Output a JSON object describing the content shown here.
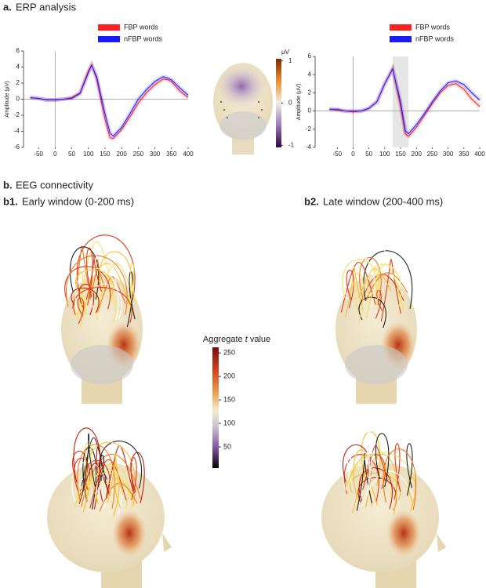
{
  "sections": {
    "a_label": "a.",
    "a_title": "ERP analysis",
    "b_label": "b.",
    "b_title": "EEG connectivity",
    "b1_label": "b1.",
    "b1_title": "Early window (0-200 ms)",
    "b2_label": "b2.",
    "b2_title": "Late window (200-400 ms)"
  },
  "chart_data": [
    {
      "type": "line",
      "ylabel": "Amplitude (μV)",
      "legend": "top",
      "x": [
        -75,
        -50,
        -25,
        0,
        25,
        50,
        75,
        100,
        110,
        125,
        150,
        165,
        175,
        200,
        225,
        250,
        275,
        300,
        325,
        340,
        350,
        375,
        400
      ],
      "series": [
        {
          "name": "FBP words",
          "color": "#ff2020",
          "values": [
            0.2,
            0.1,
            -0.1,
            -0.1,
            0,
            0.2,
            0.8,
            3.5,
            4.3,
            2.5,
            -2.5,
            -4.8,
            -4.9,
            -3.8,
            -2.2,
            -0.5,
            0.8,
            1.8,
            2.5,
            2.4,
            2.2,
            1.0,
            0.2
          ]
        },
        {
          "name": "nFBP words",
          "color": "#1a1aff",
          "values": [
            0.2,
            0.1,
            -0.1,
            -0.1,
            0,
            0.1,
            0.7,
            3.3,
            4.2,
            2.8,
            -1.8,
            -4.2,
            -4.6,
            -3.5,
            -1.8,
            0,
            1.2,
            2.2,
            2.8,
            2.6,
            2.4,
            1.4,
            0.5
          ]
        }
      ],
      "xlim": [
        -95,
        400
      ],
      "xticks": [
        -50,
        0,
        50,
        100,
        150,
        200,
        250,
        300,
        350,
        400
      ],
      "ylim": [
        -6,
        6
      ],
      "yticks": [
        -6,
        -4,
        -2,
        0,
        2,
        4,
        6
      ]
    },
    {
      "type": "line",
      "ylabel": "Amplitude (μV)",
      "legend": "top",
      "highlight": [
        125,
        175
      ],
      "x": [
        -75,
        -50,
        -25,
        0,
        25,
        50,
        75,
        100,
        125,
        150,
        165,
        175,
        200,
        225,
        250,
        275,
        300,
        325,
        350,
        375,
        400
      ],
      "series": [
        {
          "name": "FBP words",
          "color": "#ff2020",
          "values": [
            0.2,
            0.1,
            0,
            -0.1,
            0,
            0.3,
            1,
            3,
            4.7,
            0.5,
            -2.5,
            -2.8,
            -1.8,
            -0.5,
            0.8,
            2,
            2.8,
            3,
            2.4,
            1.3,
            0.5
          ]
        },
        {
          "name": "nFBP words",
          "color": "#1a1aff",
          "values": [
            0.2,
            0.2,
            0,
            0,
            0,
            0.3,
            1,
            3,
            4.6,
            1,
            -2.2,
            -2.5,
            -1.5,
            -0.3,
            1,
            2.2,
            3.1,
            3.3,
            2.9,
            2,
            1.2
          ]
        }
      ],
      "xlim": [
        -120,
        400
      ],
      "xticks": [
        -50,
        0,
        50,
        100,
        150,
        200,
        250,
        300,
        350,
        400
      ],
      "ylim": [
        -4,
        6
      ],
      "yticks": [
        -4,
        -2,
        0,
        2,
        4,
        6
      ]
    }
  ],
  "colorbars": [
    {
      "title": "μV",
      "lim": [
        -1.05,
        1.05
      ],
      "ticks": [
        1,
        0,
        -1
      ]
    },
    {
      "title_parts": [
        "Aggregate ",
        "t",
        " value"
      ],
      "lim": [
        5,
        262
      ],
      "ticks": [
        50,
        100,
        150,
        200,
        250
      ]
    }
  ]
}
